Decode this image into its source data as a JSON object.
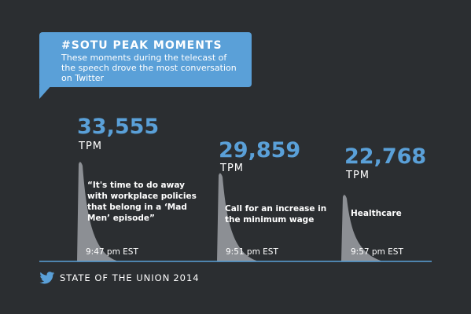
{
  "header": {
    "title": "#SOTU PEAK MOMENTS",
    "subtitle_lines": [
      "These moments during the telecast of",
      "the speech drove the most conversation",
      "on Twitter"
    ]
  },
  "footer": {
    "brand": "STATE OF THE UNION",
    "year": "2014",
    "icon": "twitter-bird-icon"
  },
  "colors": {
    "background": "#2b2e31",
    "accent": "#5aa0d8",
    "spike": "#8c8f94",
    "baseline": "#5aa0d8"
  },
  "chart_data": {
    "type": "area",
    "unit": "TPM",
    "ylim": [
      0,
      33555
    ],
    "series": [
      {
        "value": 33555,
        "value_label": "33,555",
        "unit_label": "TPM",
        "label_lines": [
          "“It's time to do away",
          "with workplace policies",
          "that belong in a ‘Mad",
          "Men’ episode”"
        ],
        "time": "9:47 pm EST"
      },
      {
        "value": 29859,
        "value_label": "29,859",
        "unit_label": "TPM",
        "label_lines": [
          "Call for an increase in",
          "the minimum wage"
        ],
        "time": "9:51 pm EST"
      },
      {
        "value": 22768,
        "value_label": "22,768",
        "unit_label": "TPM",
        "label_lines": [
          "Healthcare"
        ],
        "time": "9:57 pm EST"
      }
    ]
  }
}
